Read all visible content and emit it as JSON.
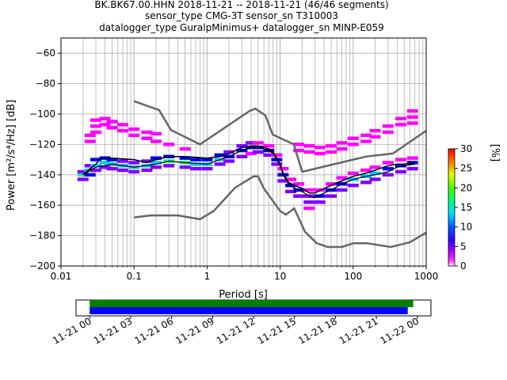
{
  "chart_data": {
    "type": "heatmap",
    "title_lines": [
      "BK.BK67.00.HHN   2018-11-21 -- 2018-11-21  (46/46 segments)",
      "sensor_type CMG-3T sensor_sn T310003",
      "datalogger_type GuralpMinimus+ datalogger_sn MINP-E059"
    ],
    "xlabel": "Period [s]",
    "ylabel": "Power [m²/s⁴/Hz] [dB]",
    "x_scale": "log",
    "xlim": [
      0.01,
      1000
    ],
    "ylim": [
      -200,
      -50
    ],
    "grid": true,
    "x_ticks": [
      {
        "value": 0.01,
        "label": "0.01"
      },
      {
        "value": 0.1,
        "label": "0.1"
      },
      {
        "value": 1,
        "label": "1"
      },
      {
        "value": 10,
        "label": "10"
      },
      {
        "value": 100,
        "label": "100"
      },
      {
        "value": 1000,
        "label": "1000"
      }
    ],
    "y_ticks": [
      {
        "value": -60,
        "label": "−60"
      },
      {
        "value": -80,
        "label": "−80"
      },
      {
        "value": -100,
        "label": "−100"
      },
      {
        "value": -120,
        "label": "−120"
      },
      {
        "value": -140,
        "label": "−140"
      },
      {
        "value": -160,
        "label": "−160"
      },
      {
        "value": -180,
        "label": "−180"
      },
      {
        "value": -200,
        "label": "−200"
      }
    ],
    "colorbar": {
      "label": "[%]",
      "range": [
        0,
        30
      ],
      "ticks": [
        {
          "value": 0,
          "label": "0"
        },
        {
          "value": 5,
          "label": "5"
        },
        {
          "value": 10,
          "label": "10"
        },
        {
          "value": 15,
          "label": "15"
        },
        {
          "value": 20,
          "label": "20"
        },
        {
          "value": 25,
          "label": "25"
        },
        {
          "value": 30,
          "label": "30"
        }
      ],
      "colors": [
        "#ffffff",
        "#ff00ff",
        "#8000ff",
        "#0000ff",
        "#00c8ff",
        "#00ff80",
        "#40ff00",
        "#ffff00",
        "#ff8000",
        "#ff0000"
      ]
    },
    "mode_curve": {
      "x": [
        0.02,
        0.025,
        0.03,
        0.05,
        0.1,
        0.2,
        0.3,
        0.5,
        1,
        1.5,
        2,
        3,
        4,
        5,
        6,
        7,
        8,
        9,
        10,
        11,
        13,
        16,
        20,
        25,
        30,
        40,
        50,
        70,
        100,
        150,
        200,
        300,
        400,
        500,
        700
      ],
      "y": [
        -140,
        -137,
        -135,
        -133,
        -135,
        -133,
        -131,
        -132,
        -133,
        -130,
        -128,
        -124,
        -122,
        -122,
        -123,
        -124,
        -126,
        -130,
        -134,
        -140,
        -146,
        -149,
        -151,
        -154,
        -155,
        -152,
        -150,
        -146,
        -143,
        -141,
        -140,
        -138,
        -135,
        -134,
        -133
      ]
    },
    "mean_curve": {
      "x": [
        0.02,
        0.025,
        0.03,
        0.035,
        0.05,
        0.1,
        0.15,
        0.2,
        0.3,
        0.5,
        1,
        1.5,
        2,
        3,
        4,
        5,
        6,
        7,
        8,
        9,
        10,
        11,
        13,
        16,
        20,
        25,
        30,
        40,
        50,
        70,
        100,
        150,
        200,
        300,
        400,
        500,
        700
      ],
      "y": [
        -140,
        -136,
        -133,
        -129,
        -129,
        -130,
        -132,
        -130,
        -128,
        -128,
        -129,
        -128,
        -126,
        -122,
        -121,
        -121,
        -122,
        -123,
        -125,
        -129,
        -133,
        -139,
        -145,
        -147,
        -149,
        -152,
        -152,
        -149,
        -147,
        -144,
        -141,
        -139,
        -137,
        -134,
        -133,
        -133,
        -132
      ]
    },
    "noise_models": [
      {
        "x": [
          0.1,
          0.17,
          0.22,
          0.32,
          0.8,
          3.8,
          4.6,
          6.3,
          7.9,
          15.4,
          20
        ],
        "y": [
          -91.5,
          -95.5,
          -97.4,
          -110.5,
          -120,
          -98,
          -96.5,
          -101,
          -113.5,
          -120,
          -138
        ]
      },
      {
        "x": [
          20,
          100,
          150,
          350,
          1000
        ],
        "y": [
          -138,
          -130,
          -128,
          -126,
          -111
        ]
      },
      {
        "x": [
          0.1,
          0.17,
          0.4,
          0.8,
          1.24,
          2.4,
          4.3,
          5,
          6,
          10,
          12,
          15.6,
          21.9,
          31.6,
          45,
          70,
          101,
          154,
          328,
          600,
          1000
        ],
        "y": [
          -168,
          -166.7,
          -166.7,
          -169.2,
          -163.7,
          -148.6,
          -141.1,
          -141.1,
          -149,
          -163.8,
          -166.2,
          -162.1,
          -177.5,
          -185,
          -187.5,
          -187.5,
          -185,
          -185,
          -187.5,
          -184.4,
          -178
        ]
      }
    ],
    "distribution": [
      {
        "x": 0.02,
        "y": -140,
        "v": 18
      },
      {
        "x": 0.02,
        "y": -143,
        "v": 8
      },
      {
        "x": 0.02,
        "y": -138,
        "v": 5
      },
      {
        "x": 0.025,
        "y": -137,
        "v": 14
      },
      {
        "x": 0.025,
        "y": -140,
        "v": 10
      },
      {
        "x": 0.025,
        "y": -134,
        "v": 5
      },
      {
        "x": 0.025,
        "y": -118,
        "v": 2
      },
      {
        "x": 0.025,
        "y": -114,
        "v": 1
      },
      {
        "x": 0.03,
        "y": -134,
        "v": 12
      },
      {
        "x": 0.03,
        "y": -130,
        "v": 9
      },
      {
        "x": 0.03,
        "y": -137,
        "v": 6
      },
      {
        "x": 0.03,
        "y": -104,
        "v": 2
      },
      {
        "x": 0.03,
        "y": -108,
        "v": 1
      },
      {
        "x": 0.03,
        "y": -112,
        "v": 1
      },
      {
        "x": 0.04,
        "y": -132,
        "v": 14
      },
      {
        "x": 0.04,
        "y": -129,
        "v": 10
      },
      {
        "x": 0.04,
        "y": -135,
        "v": 6
      },
      {
        "x": 0.04,
        "y": -103,
        "v": 2
      },
      {
        "x": 0.04,
        "y": -107,
        "v": 1
      },
      {
        "x": 0.05,
        "y": -133,
        "v": 13
      },
      {
        "x": 0.05,
        "y": -130,
        "v": 9
      },
      {
        "x": 0.05,
        "y": -136,
        "v": 6
      },
      {
        "x": 0.05,
        "y": -105,
        "v": 2
      },
      {
        "x": 0.05,
        "y": -109,
        "v": 1
      },
      {
        "x": 0.07,
        "y": -134,
        "v": 12
      },
      {
        "x": 0.07,
        "y": -131,
        "v": 8
      },
      {
        "x": 0.07,
        "y": -137,
        "v": 5
      },
      {
        "x": 0.07,
        "y": -107,
        "v": 2
      },
      {
        "x": 0.07,
        "y": -111,
        "v": 1
      },
      {
        "x": 0.1,
        "y": -135,
        "v": 12
      },
      {
        "x": 0.1,
        "y": -132,
        "v": 7
      },
      {
        "x": 0.1,
        "y": -138,
        "v": 5
      },
      {
        "x": 0.1,
        "y": -110,
        "v": 2
      },
      {
        "x": 0.1,
        "y": -114,
        "v": 1
      },
      {
        "x": 0.15,
        "y": -134,
        "v": 13
      },
      {
        "x": 0.15,
        "y": -131,
        "v": 8
      },
      {
        "x": 0.15,
        "y": -137,
        "v": 5
      },
      {
        "x": 0.15,
        "y": -112,
        "v": 2
      },
      {
        "x": 0.15,
        "y": -116,
        "v": 1
      },
      {
        "x": 0.2,
        "y": -132,
        "v": 14
      },
      {
        "x": 0.2,
        "y": -129,
        "v": 9
      },
      {
        "x": 0.2,
        "y": -135,
        "v": 6
      },
      {
        "x": 0.2,
        "y": -113,
        "v": 2
      },
      {
        "x": 0.2,
        "y": -118,
        "v": 1
      },
      {
        "x": 0.3,
        "y": -131,
        "v": 15
      },
      {
        "x": 0.3,
        "y": -128,
        "v": 10
      },
      {
        "x": 0.3,
        "y": -134,
        "v": 6
      },
      {
        "x": 0.3,
        "y": -120,
        "v": 2
      },
      {
        "x": 0.5,
        "y": -132,
        "v": 15
      },
      {
        "x": 0.5,
        "y": -129,
        "v": 10
      },
      {
        "x": 0.5,
        "y": -135,
        "v": 6
      },
      {
        "x": 0.5,
        "y": -123,
        "v": 2
      },
      {
        "x": 0.7,
        "y": -133,
        "v": 14
      },
      {
        "x": 0.7,
        "y": -130,
        "v": 9
      },
      {
        "x": 0.7,
        "y": -136,
        "v": 6
      },
      {
        "x": 1,
        "y": -133,
        "v": 12
      },
      {
        "x": 1,
        "y": -130,
        "v": 9
      },
      {
        "x": 1,
        "y": -136,
        "v": 5
      },
      {
        "x": 1.5,
        "y": -130,
        "v": 12
      },
      {
        "x": 1.5,
        "y": -127,
        "v": 9
      },
      {
        "x": 1.5,
        "y": -133,
        "v": 6
      },
      {
        "x": 2,
        "y": -128,
        "v": 11
      },
      {
        "x": 2,
        "y": -125,
        "v": 8
      },
      {
        "x": 2,
        "y": -131,
        "v": 5
      },
      {
        "x": 3,
        "y": -124,
        "v": 10
      },
      {
        "x": 3,
        "y": -121,
        "v": 7
      },
      {
        "x": 3,
        "y": -128,
        "v": 5
      },
      {
        "x": 4,
        "y": -122,
        "v": 10
      },
      {
        "x": 4,
        "y": -119,
        "v": 7
      },
      {
        "x": 4,
        "y": -126,
        "v": 4
      },
      {
        "x": 5,
        "y": -122,
        "v": 11
      },
      {
        "x": 5,
        "y": -125,
        "v": 7
      },
      {
        "x": 5,
        "y": -119,
        "v": 4
      },
      {
        "x": 7,
        "y": -124,
        "v": 11
      },
      {
        "x": 7,
        "y": -127,
        "v": 7
      },
      {
        "x": 7,
        "y": -121,
        "v": 4
      },
      {
        "x": 9,
        "y": -130,
        "v": 10
      },
      {
        "x": 9,
        "y": -133,
        "v": 7
      },
      {
        "x": 9,
        "y": -127,
        "v": 4
      },
      {
        "x": 11,
        "y": -140,
        "v": 9
      },
      {
        "x": 11,
        "y": -144,
        "v": 6
      },
      {
        "x": 11,
        "y": -136,
        "v": 4
      },
      {
        "x": 14,
        "y": -147,
        "v": 9
      },
      {
        "x": 14,
        "y": -151,
        "v": 6
      },
      {
        "x": 14,
        "y": -143,
        "v": 4
      },
      {
        "x": 18,
        "y": -150,
        "v": 9
      },
      {
        "x": 18,
        "y": -154,
        "v": 6
      },
      {
        "x": 18,
        "y": -146,
        "v": 4
      },
      {
        "x": 18,
        "y": -120,
        "v": 2
      },
      {
        "x": 18,
        "y": -124,
        "v": 1
      },
      {
        "x": 25,
        "y": -154,
        "v": 8
      },
      {
        "x": 25,
        "y": -158,
        "v": 6
      },
      {
        "x": 25,
        "y": -162,
        "v": 4
      },
      {
        "x": 25,
        "y": -150,
        "v": 4
      },
      {
        "x": 25,
        "y": -121,
        "v": 2
      },
      {
        "x": 25,
        "y": -125,
        "v": 1
      },
      {
        "x": 35,
        "y": -154,
        "v": 9
      },
      {
        "x": 35,
        "y": -158,
        "v": 6
      },
      {
        "x": 35,
        "y": -150,
        "v": 4
      },
      {
        "x": 35,
        "y": -122,
        "v": 2
      },
      {
        "x": 35,
        "y": -126,
        "v": 1
      },
      {
        "x": 50,
        "y": -150,
        "v": 10
      },
      {
        "x": 50,
        "y": -154,
        "v": 6
      },
      {
        "x": 50,
        "y": -146,
        "v": 4
      },
      {
        "x": 50,
        "y": -121,
        "v": 2
      },
      {
        "x": 50,
        "y": -125,
        "v": 1
      },
      {
        "x": 70,
        "y": -146,
        "v": 11
      },
      {
        "x": 70,
        "y": -150,
        "v": 7
      },
      {
        "x": 70,
        "y": -142,
        "v": 4
      },
      {
        "x": 70,
        "y": -119,
        "v": 2
      },
      {
        "x": 70,
        "y": -123,
        "v": 1
      },
      {
        "x": 100,
        "y": -143,
        "v": 12
      },
      {
        "x": 100,
        "y": -147,
        "v": 7
      },
      {
        "x": 100,
        "y": -139,
        "v": 4
      },
      {
        "x": 100,
        "y": -116,
        "v": 2
      },
      {
        "x": 100,
        "y": -120,
        "v": 1
      },
      {
        "x": 150,
        "y": -141,
        "v": 12
      },
      {
        "x": 150,
        "y": -145,
        "v": 7
      },
      {
        "x": 150,
        "y": -137,
        "v": 4
      },
      {
        "x": 150,
        "y": -114,
        "v": 2
      },
      {
        "x": 150,
        "y": -118,
        "v": 1
      },
      {
        "x": 200,
        "y": -139,
        "v": 12
      },
      {
        "x": 200,
        "y": -143,
        "v": 7
      },
      {
        "x": 200,
        "y": -135,
        "v": 4
      },
      {
        "x": 200,
        "y": -111,
        "v": 2
      },
      {
        "x": 200,
        "y": -115,
        "v": 1
      },
      {
        "x": 300,
        "y": -136,
        "v": 11
      },
      {
        "x": 300,
        "y": -140,
        "v": 7
      },
      {
        "x": 300,
        "y": -132,
        "v": 4
      },
      {
        "x": 300,
        "y": -108,
        "v": 2
      },
      {
        "x": 300,
        "y": -112,
        "v": 1
      },
      {
        "x": 450,
        "y": -134,
        "v": 10
      },
      {
        "x": 450,
        "y": -138,
        "v": 6
      },
      {
        "x": 450,
        "y": -130,
        "v": 4
      },
      {
        "x": 450,
        "y": -103,
        "v": 2
      },
      {
        "x": 450,
        "y": -107,
        "v": 1
      },
      {
        "x": 650,
        "y": -132,
        "v": 9
      },
      {
        "x": 650,
        "y": -136,
        "v": 6
      },
      {
        "x": 650,
        "y": -129,
        "v": 4
      },
      {
        "x": 650,
        "y": -98,
        "v": 2
      },
      {
        "x": 650,
        "y": -102,
        "v": 1
      },
      {
        "x": 650,
        "y": -106,
        "v": 1
      }
    ]
  },
  "timeline": {
    "type": "timeline",
    "x_ticks": [
      "11-21 00",
      "11-21 03",
      "11-21 06",
      "11-21 09",
      "11-21 12",
      "11-21 15",
      "11-21 18",
      "11-21 21",
      "11-22 00"
    ],
    "xlim_hours": [
      -1,
      25
    ],
    "bars": [
      {
        "start_hour": 0,
        "end_hour": 23.7,
        "color": "#008000"
      },
      {
        "start_hour": 0,
        "end_hour": 23.3,
        "color": "#0000ff"
      }
    ]
  }
}
